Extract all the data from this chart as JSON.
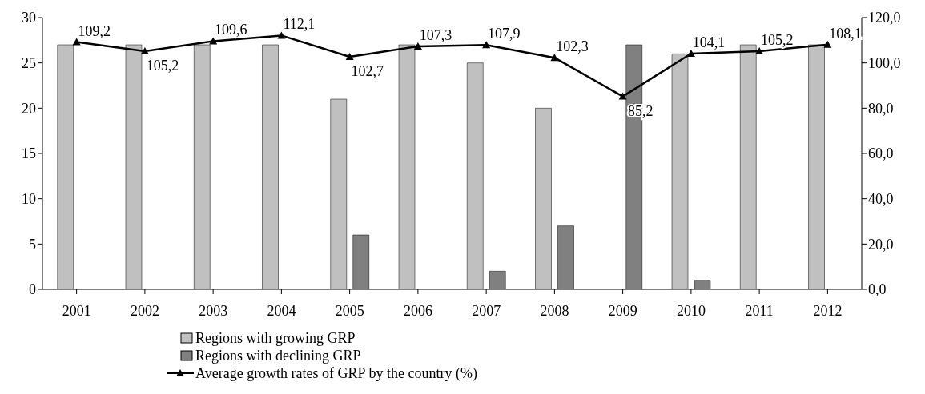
{
  "chart_data": {
    "type": "bar",
    "categories": [
      "2001",
      "2002",
      "2003",
      "2004",
      "2005",
      "2006",
      "2007",
      "2008",
      "2009",
      "2010",
      "2011",
      "2012"
    ],
    "series": [
      {
        "name": "Regions with growing GRP",
        "color": "#c0c0c0",
        "values": [
          27,
          27,
          27,
          27,
          21,
          27,
          25,
          20,
          null,
          26,
          27,
          27
        ]
      },
      {
        "name": "Regions with declining GRP",
        "color": "#808080",
        "values": [
          null,
          null,
          null,
          null,
          6,
          null,
          2,
          7,
          27,
          1,
          null,
          null
        ]
      },
      {
        "name": "Average growth rates of GRP by the country (%)",
        "type": "line",
        "axis": "y2",
        "color": "#000000",
        "marker": "triangle",
        "values": [
          109.2,
          105.2,
          109.6,
          112.1,
          102.7,
          107.3,
          107.9,
          102.3,
          85.2,
          104.1,
          105.2,
          108.1
        ],
        "value_labels": [
          "109,2",
          "105,2",
          "109,6",
          "112,1",
          "102,7",
          "107,3",
          "107,9",
          "102,3",
          "85,2",
          "104,1",
          "105,2",
          "108,1"
        ]
      }
    ],
    "ylim": [
      0,
      30
    ],
    "yticks": [
      0,
      5,
      10,
      15,
      20,
      25,
      30
    ],
    "y2lim": [
      0,
      120
    ],
    "y2ticks": [
      {
        "value": 0,
        "label": "0,0"
      },
      {
        "value": 20,
        "label": "20,0"
      },
      {
        "value": 40,
        "label": "40,0"
      },
      {
        "value": 60,
        "label": "60,0"
      },
      {
        "value": 80,
        "label": "80,0"
      },
      {
        "value": 100,
        "label": "100,0"
      },
      {
        "value": 120,
        "label": "120,0"
      }
    ],
    "grid": false,
    "legend": "bottom"
  }
}
